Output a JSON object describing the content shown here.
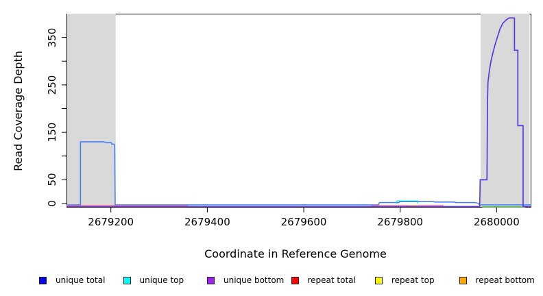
{
  "figure": {
    "y_axis_title": "Read Coverage Depth",
    "x_axis_title": "Coordinate in Reference Genome"
  },
  "chart_data": {
    "type": "line",
    "title": "",
    "xlabel": "Coordinate in Reference Genome",
    "ylabel": "Read Coverage Depth",
    "xlim": [
      2679108,
      2680072
    ],
    "ylim": [
      0,
      400
    ],
    "grid": false,
    "legend_position": "bottom",
    "x_ticks": [
      {
        "value": 2679200,
        "label": "2679200"
      },
      {
        "value": 2679400,
        "label": "2679400"
      },
      {
        "value": 2679600,
        "label": "2679600"
      },
      {
        "value": 2679800,
        "label": "2679800"
      },
      {
        "value": 2680000,
        "label": "2680000"
      }
    ],
    "y_ticks": [
      {
        "value": 0,
        "label": "0"
      },
      {
        "value": 50,
        "label": "50"
      },
      {
        "value": 100,
        "label": ""
      },
      {
        "value": 150,
        "label": "150"
      },
      {
        "value": 200,
        "label": ""
      },
      {
        "value": 250,
        "label": "250"
      },
      {
        "value": 300,
        "label": ""
      },
      {
        "value": 350,
        "label": "350"
      }
    ],
    "highlight_regions": [
      {
        "from": 2679108,
        "to": 2679210,
        "color": "#d9d9d9"
      },
      {
        "from": 2679967,
        "to": 2680068,
        "color": "#d9d9d9"
      }
    ],
    "series": [
      {
        "name": "unique total",
        "line_color": "#3e7bfe",
        "swatch_color": "#0000ee",
        "width": 1.5,
        "zero_offset": 2,
        "segments": [
          [
            [
              2679108,
              0
            ],
            [
              2679137,
              0
            ],
            [
              2679137,
              130
            ],
            [
              2679186,
              130
            ],
            [
              2679189,
              129
            ],
            [
              2679200,
              129
            ],
            [
              2679202,
              125
            ],
            [
              2679207,
              125
            ],
            [
              2679208,
              121
            ],
            [
              2679209,
              0
            ],
            [
              2679755,
              0
            ],
            [
              2679757,
              2
            ],
            [
              2679797,
              2
            ],
            [
              2679799,
              4
            ],
            [
              2679868,
              4
            ],
            [
              2679872,
              3
            ],
            [
              2679912,
              3
            ],
            [
              2679916,
              2
            ],
            [
              2679955,
              2
            ],
            [
              2679960,
              1
            ],
            [
              2679966,
              0
            ],
            [
              2680072,
              0
            ]
          ]
        ]
      },
      {
        "name": "unique top",
        "line_color": "#00dde5",
        "swatch_color": "#00ffff",
        "width": 1.2,
        "zero_offset": 0,
        "segments": [
          [
            [
              2679793,
              0
            ],
            [
              2679793,
              5.5
            ],
            [
              2679836,
              5.5
            ],
            [
              2679836,
              0
            ]
          ]
        ]
      },
      {
        "name": "unique bottom",
        "line_color": "#5b35e8",
        "swatch_color": "#a020f0",
        "width": 1.7,
        "zero_offset": 4.5,
        "segments": [
          [
            [
              2679108,
              0
            ],
            [
              2679965,
              0
            ],
            [
              2679966,
              50
            ],
            [
              2679980,
              50
            ],
            [
              2679981,
              210
            ],
            [
              2679982,
              255
            ],
            [
              2679985,
              280
            ],
            [
              2679988,
              298
            ],
            [
              2679992,
              316
            ],
            [
              2679997,
              336
            ],
            [
              2680002,
              352
            ],
            [
              2680007,
              368
            ],
            [
              2680013,
              380
            ],
            [
              2680020,
              387
            ],
            [
              2680026,
              391
            ],
            [
              2680037,
              391
            ],
            [
              2680037,
              323
            ],
            [
              2680044,
              323
            ],
            [
              2680044,
              164
            ],
            [
              2680055,
              164
            ],
            [
              2680055,
              0
            ],
            [
              2680072,
              0
            ]
          ]
        ]
      },
      {
        "name": "repeat total",
        "line_color": "#ff6b6b",
        "swatch_color": "#ff0000",
        "width": 1.2,
        "zero_offset": 3,
        "segments": [
          [
            [
              2679108,
              0
            ],
            [
              2679360,
              0
            ]
          ],
          [
            [
              2679740,
              0
            ],
            [
              2679890,
              0
            ]
          ]
        ]
      },
      {
        "name": "repeat top",
        "line_color": "#ffff00",
        "swatch_color": "#ffff00",
        "width": 1.2,
        "zero_offset": 3,
        "segments": []
      },
      {
        "name": "repeat bottom",
        "line_color": "#f5a333",
        "swatch_color": "#ffa500",
        "width": 1.4,
        "zero_offset": 3,
        "segments": [
          [
            [
              2679818,
              0
            ],
            [
              2679836,
              0
            ]
          ]
        ]
      }
    ],
    "annotations": [
      {
        "name": "baseline-green-segment",
        "from": 2679970,
        "to": 2680059,
        "value": 0,
        "color": "#58be58"
      }
    ]
  },
  "legend": {
    "items": [
      {
        "label": "unique total",
        "color": "#0000ee"
      },
      {
        "label": "unique top",
        "color": "#00ffff"
      },
      {
        "label": "unique bottom",
        "color": "#a020f0"
      },
      {
        "label": "repeat total",
        "color": "#ff0000"
      },
      {
        "label": "repeat top",
        "color": "#ffff00"
      },
      {
        "label": "repeat bottom",
        "color": "#ffa500"
      }
    ]
  }
}
